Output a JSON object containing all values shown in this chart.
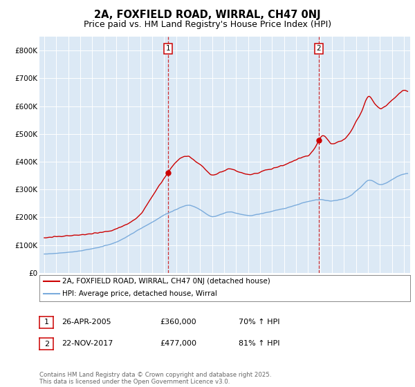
{
  "title_line1": "2A, FOXFIELD ROAD, WIRRAL, CH47 0NJ",
  "title_line2": "Price paid vs. HM Land Registry's House Price Index (HPI)",
  "title_fontsize": 11,
  "subtitle_fontsize": 9.5,
  "bg_color": "#ffffff",
  "plot_bg_color": "#dce9f5",
  "red_color": "#cc0000",
  "blue_color": "#7aabdc",
  "sale1_date_x": 2005.32,
  "sale1_price": 360000,
  "sale2_date_x": 2017.9,
  "sale2_price": 477000,
  "legend_label_red": "2A, FOXFIELD ROAD, WIRRAL, CH47 0NJ (detached house)",
  "legend_label_blue": "HPI: Average price, detached house, Wirral",
  "annotation1_date": "26-APR-2005",
  "annotation1_price": "£360,000",
  "annotation1_hpi": "70% ↑ HPI",
  "annotation2_date": "22-NOV-2017",
  "annotation2_price": "£477,000",
  "annotation2_hpi": "81% ↑ HPI",
  "footer": "Contains HM Land Registry data © Crown copyright and database right 2025.\nThis data is licensed under the Open Government Licence v3.0.",
  "ylim": [
    0,
    850000
  ],
  "yticks": [
    0,
    100000,
    200000,
    300000,
    400000,
    500000,
    600000,
    700000,
    800000
  ],
  "ytick_labels": [
    "£0",
    "£100K",
    "£200K",
    "£300K",
    "£400K",
    "£500K",
    "£600K",
    "£700K",
    "£800K"
  ],
  "xlim_start": 1994.6,
  "xlim_end": 2025.5
}
